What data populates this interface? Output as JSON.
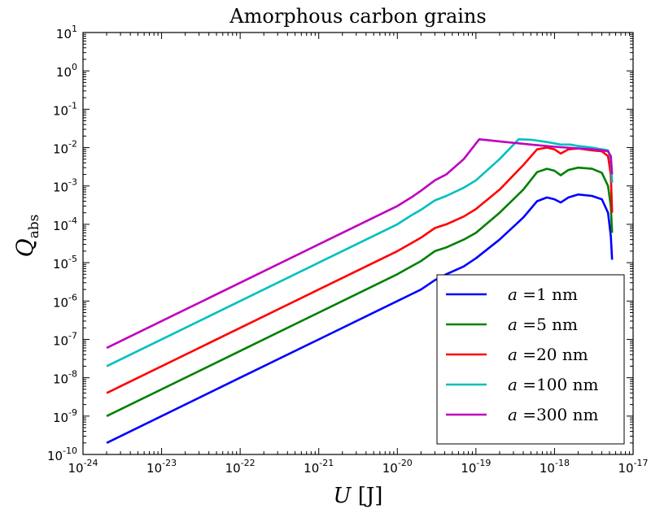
{
  "chart_data": {
    "type": "line",
    "title": "Amorphous carbon grains",
    "xlabel": "U [J]",
    "ylabel": "Q_abs",
    "xscale": "log",
    "yscale": "log",
    "xlim": [
      1e-24,
      1e-17
    ],
    "ylim": [
      1e-10,
      10
    ],
    "grid": false,
    "legend_position": "lower-right",
    "x_ticks": [
      {
        "base": "10",
        "exp": "-24",
        "value": 1e-24
      },
      {
        "base": "10",
        "exp": "-23",
        "value": 1e-23
      },
      {
        "base": "10",
        "exp": "-22",
        "value": 1e-22
      },
      {
        "base": "10",
        "exp": "-21",
        "value": 1e-21
      },
      {
        "base": "10",
        "exp": "-20",
        "value": 1e-20
      },
      {
        "base": "10",
        "exp": "-19",
        "value": 1e-19
      },
      {
        "base": "10",
        "exp": "-18",
        "value": 1e-18
      },
      {
        "base": "10",
        "exp": "-17",
        "value": 1e-17
      }
    ],
    "y_ticks": [
      {
        "base": "10",
        "exp": "-10",
        "value": 1e-10
      },
      {
        "base": "10",
        "exp": "-9",
        "value": 1e-09
      },
      {
        "base": "10",
        "exp": "-8",
        "value": 1e-08
      },
      {
        "base": "10",
        "exp": "-7",
        "value": 1e-07
      },
      {
        "base": "10",
        "exp": "-6",
        "value": 1e-06
      },
      {
        "base": "10",
        "exp": "-5",
        "value": 1e-05
      },
      {
        "base": "10",
        "exp": "-4",
        "value": 0.0001
      },
      {
        "base": "10",
        "exp": "-3",
        "value": 0.001
      },
      {
        "base": "10",
        "exp": "-2",
        "value": 0.01
      },
      {
        "base": "10",
        "exp": "-1",
        "value": 0.1
      },
      {
        "base": "10",
        "exp": "0",
        "value": 1
      },
      {
        "base": "10",
        "exp": "1",
        "value": 10
      }
    ],
    "series": [
      {
        "name": "a = 1 nm",
        "legend_var": "a",
        "legend_eq": "=",
        "legend_val": "1 nm",
        "color": "#0000ff",
        "points": [
          [
            2e-24,
            2e-10
          ],
          [
            1e-22,
            1e-08
          ],
          [
            1e-21,
            1e-07
          ],
          [
            1e-20,
            1e-06
          ],
          [
            1.5e-20,
            1.5e-06
          ],
          [
            2e-20,
            2e-06
          ],
          [
            3e-20,
            3.5e-06
          ],
          [
            4.2e-20,
            5e-06
          ],
          [
            7e-20,
            8e-06
          ],
          [
            1e-19,
            1.3e-05
          ],
          [
            2e-19,
            4e-05
          ],
          [
            4e-19,
            0.00015
          ],
          [
            6e-19,
            0.0004
          ],
          [
            8e-19,
            0.0005
          ],
          [
            1e-18,
            0.00045
          ],
          [
            1.2e-18,
            0.00037
          ],
          [
            1.5e-18,
            0.0005
          ],
          [
            2e-18,
            0.0006
          ],
          [
            3e-18,
            0.00055
          ],
          [
            4e-18,
            0.00045
          ],
          [
            4.8e-18,
            0.0002
          ],
          [
            5.2e-18,
            5e-05
          ],
          [
            5.4e-18,
            1.2e-05
          ]
        ]
      },
      {
        "name": "a = 5 nm",
        "legend_var": "a",
        "legend_eq": "=",
        "legend_val": "5 nm",
        "color": "#008000",
        "points": [
          [
            2e-24,
            1e-09
          ],
          [
            1e-22,
            5e-08
          ],
          [
            1e-21,
            5e-07
          ],
          [
            1e-20,
            5e-06
          ],
          [
            1.5e-20,
            8e-06
          ],
          [
            2e-20,
            1.1e-05
          ],
          [
            3e-20,
            2e-05
          ],
          [
            4.2e-20,
            2.5e-05
          ],
          [
            7e-20,
            4e-05
          ],
          [
            1e-19,
            6e-05
          ],
          [
            2e-19,
            0.0002
          ],
          [
            4e-19,
            0.0008
          ],
          [
            6e-19,
            0.0023
          ],
          [
            8e-19,
            0.0028
          ],
          [
            1e-18,
            0.0025
          ],
          [
            1.2e-18,
            0.0019
          ],
          [
            1.5e-18,
            0.0026
          ],
          [
            2e-18,
            0.003
          ],
          [
            3e-18,
            0.0028
          ],
          [
            4e-18,
            0.0022
          ],
          [
            4.8e-18,
            0.001
          ],
          [
            5.2e-18,
            0.0003
          ],
          [
            5.4e-18,
            6e-05
          ]
        ]
      },
      {
        "name": "a = 20 nm",
        "legend_var": "a",
        "legend_eq": "=",
        "legend_val": "20 nm",
        "color": "#ff0000",
        "points": [
          [
            2e-24,
            4e-09
          ],
          [
            1e-22,
            2e-07
          ],
          [
            1e-21,
            2e-06
          ],
          [
            1e-20,
            2e-05
          ],
          [
            1.5e-20,
            3.2e-05
          ],
          [
            2e-20,
            4.5e-05
          ],
          [
            3e-20,
            8e-05
          ],
          [
            4.2e-20,
            0.0001
          ],
          [
            7e-20,
            0.00016
          ],
          [
            1e-19,
            0.00025
          ],
          [
            2e-19,
            0.0008
          ],
          [
            4e-19,
            0.0035
          ],
          [
            6e-19,
            0.009
          ],
          [
            8e-19,
            0.01
          ],
          [
            1e-18,
            0.009
          ],
          [
            1.2e-18,
            0.007
          ],
          [
            1.5e-18,
            0.009
          ],
          [
            2e-18,
            0.0095
          ],
          [
            3e-18,
            0.0085
          ],
          [
            4e-18,
            0.008
          ],
          [
            4.8e-18,
            0.006
          ],
          [
            5.2e-18,
            0.002
          ],
          [
            5.4e-18,
            0.0002
          ]
        ]
      },
      {
        "name": "a = 100 nm",
        "legend_var": "a",
        "legend_eq": "=",
        "legend_val": "100 nm",
        "color": "#00bfbf",
        "points": [
          [
            2e-24,
            2e-08
          ],
          [
            1e-22,
            1e-06
          ],
          [
            1e-21,
            1e-05
          ],
          [
            1e-20,
            0.0001
          ],
          [
            1.5e-20,
            0.00017
          ],
          [
            2e-20,
            0.00024
          ],
          [
            3e-20,
            0.00042
          ],
          [
            4.2e-20,
            0.00055
          ],
          [
            7e-20,
            0.0009
          ],
          [
            1e-19,
            0.0014
          ],
          [
            2e-19,
            0.005
          ],
          [
            3.5e-19,
            0.0165
          ],
          [
            5e-19,
            0.016
          ],
          [
            8e-19,
            0.014
          ],
          [
            1.2e-18,
            0.012
          ],
          [
            1.6e-18,
            0.012
          ],
          [
            2e-18,
            0.011
          ],
          [
            3e-18,
            0.01
          ],
          [
            4e-18,
            0.009
          ],
          [
            4.8e-18,
            0.0085
          ],
          [
            5.2e-18,
            0.005
          ],
          [
            5.4e-18,
            0.0012
          ]
        ]
      },
      {
        "name": "a = 300 nm",
        "legend_var": "a",
        "legend_eq": "=",
        "legend_val": "300 nm",
        "color": "#bf00bf",
        "points": [
          [
            2e-24,
            6e-08
          ],
          [
            1e-22,
            3e-06
          ],
          [
            1e-21,
            3e-05
          ],
          [
            1e-20,
            0.0003
          ],
          [
            1.5e-20,
            0.0005
          ],
          [
            2e-20,
            0.00075
          ],
          [
            3e-20,
            0.0014
          ],
          [
            4.2e-20,
            0.002
          ],
          [
            7e-20,
            0.005
          ],
          [
            1.1e-19,
            0.0165
          ],
          [
            2e-19,
            0.0145
          ],
          [
            5e-19,
            0.012
          ],
          [
            1e-18,
            0.0105
          ],
          [
            2e-18,
            0.0095
          ],
          [
            3e-18,
            0.009
          ],
          [
            4e-18,
            0.0085
          ],
          [
            4.8e-18,
            0.008
          ],
          [
            5.2e-18,
            0.006
          ],
          [
            5.4e-18,
            0.002
          ]
        ]
      }
    ]
  }
}
